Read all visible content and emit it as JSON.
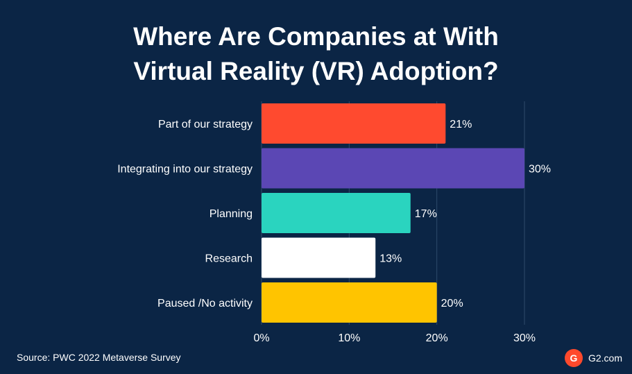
{
  "chart_data": {
    "type": "bar",
    "orientation": "horizontal",
    "title": "Where Are Companies at With Virtual Reality (VR) Adoption?",
    "title_lines": [
      "Where Are Companies at With",
      "Virtual Reality (VR) Adoption?"
    ],
    "categories": [
      "Part of our strategy",
      "Integrating into our strategy",
      "Planning",
      "Research",
      "Paused /No activity"
    ],
    "values": [
      21,
      30,
      17,
      13,
      20
    ],
    "value_labels": [
      "21%",
      "30%",
      "17%",
      "13%",
      "20%"
    ],
    "bar_colors": [
      "#ff4a2f",
      "#5b47b4",
      "#2ad4bf",
      "#ffffff",
      "#ffc400"
    ],
    "xlim": [
      0,
      30
    ],
    "xticks": [
      0,
      10,
      20,
      30
    ],
    "xtick_labels": [
      "0%",
      "10%",
      "20%",
      "30%"
    ],
    "grid": "vertical",
    "xlabel": "",
    "ylabel": ""
  },
  "footer": {
    "source": "Source: PWC 2022 Metaverse Survey",
    "brand": "G2.com",
    "brand_logo": "G"
  },
  "colors": {
    "background": "#0b2545",
    "gridline": "#2f4a6a",
    "text": "#ffffff",
    "brand": "#ff492c"
  }
}
